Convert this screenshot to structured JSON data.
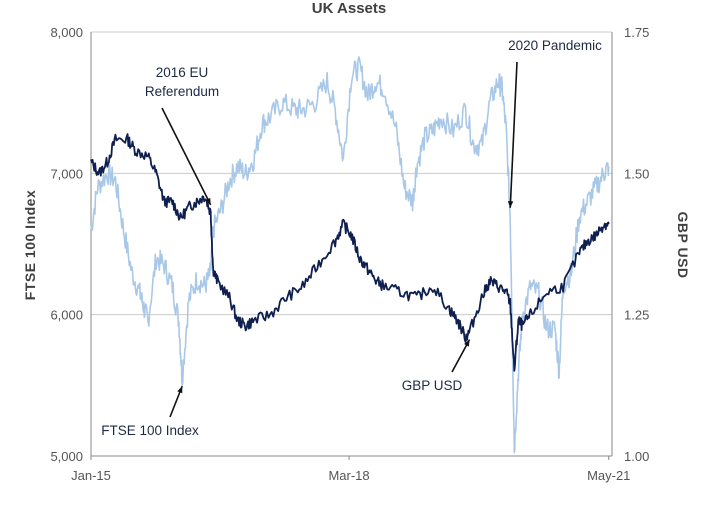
{
  "chart_data": {
    "type": "line",
    "title": "UK Assets",
    "ylabel_left": "FTSE  100  Index",
    "ylabel_right": "GBP  USD",
    "ylim_left": [
      5000,
      8000
    ],
    "ylim_right": [
      1.0,
      1.75
    ],
    "yticks_left": [
      "5,000",
      "6,000",
      "7,000",
      "8,000"
    ],
    "yticks_right": [
      "1.00",
      "1.25",
      "1.50",
      "1.75"
    ],
    "xticks": [
      {
        "label": "Jan-15",
        "t": 2015.0
      },
      {
        "label": "Mar-18",
        "t": 2018.17
      },
      {
        "label": "May-21",
        "t": 2021.36
      }
    ],
    "xlim": [
      2015.0,
      2021.4
    ],
    "grid": "horizontal",
    "colors": {
      "ftse": "#a9c8e8",
      "gbp": "#0f1f4f",
      "grid": "#cccccc",
      "axis": "#888888",
      "text": "#404040"
    },
    "series": [
      {
        "name": "FTSE 100 Index",
        "axis": "left",
        "color": "#a9c8e8",
        "x": [
          2015.0,
          2015.08,
          2015.2,
          2015.3,
          2015.4,
          2015.5,
          2015.6,
          2015.65,
          2015.7,
          2015.8,
          2015.9,
          2016.0,
          2016.08,
          2016.12,
          2016.2,
          2016.3,
          2016.4,
          2016.47,
          2016.5,
          2016.6,
          2016.7,
          2016.8,
          2016.9,
          2017.0,
          2017.1,
          2017.2,
          2017.35,
          2017.5,
          2017.6,
          2017.75,
          2017.9,
          2018.0,
          2018.1,
          2018.2,
          2018.3,
          2018.4,
          2018.5,
          2018.6,
          2018.75,
          2018.85,
          2018.95,
          2019.0,
          2019.1,
          2019.2,
          2019.3,
          2019.45,
          2019.6,
          2019.7,
          2019.8,
          2019.9,
          2020.0,
          2020.05,
          2020.1,
          2020.15,
          2020.2,
          2020.25,
          2020.3,
          2020.4,
          2020.5,
          2020.6,
          2020.7,
          2020.75,
          2020.8,
          2020.9,
          2021.0,
          2021.1,
          2021.2,
          2021.3,
          2021.36
        ],
        "y": [
          6600,
          6900,
          7000,
          6950,
          6600,
          6300,
          6150,
          6050,
          5950,
          6400,
          6350,
          6200,
          5950,
          5550,
          6100,
          6250,
          6200,
          6300,
          6600,
          6750,
          6950,
          7050,
          7000,
          7100,
          7350,
          7400,
          7500,
          7450,
          7450,
          7500,
          7650,
          7450,
          7100,
          7700,
          7750,
          7550,
          7650,
          7600,
          7300,
          6900,
          6800,
          7050,
          7250,
          7300,
          7400,
          7300,
          7450,
          7200,
          7200,
          7500,
          7650,
          7600,
          7300,
          6700,
          5050,
          5600,
          6000,
          6200,
          6150,
          5900,
          5900,
          5600,
          6200,
          6300,
          6700,
          6800,
          6900,
          7000,
          7050
        ]
      },
      {
        "name": "GBP USD",
        "axis": "right",
        "color": "#0f1f4f",
        "x": [
          2015.0,
          2015.1,
          2015.2,
          2015.3,
          2015.45,
          2015.55,
          2015.7,
          2015.8,
          2015.9,
          2016.0,
          2016.1,
          2016.2,
          2016.3,
          2016.4,
          2016.47,
          2016.5,
          2016.55,
          2016.7,
          2016.8,
          2016.9,
          2017.0,
          2017.2,
          2017.4,
          2017.6,
          2017.8,
          2018.0,
          2018.1,
          2018.2,
          2018.3,
          2018.4,
          2018.5,
          2018.6,
          2018.8,
          2019.0,
          2019.2,
          2019.4,
          2019.5,
          2019.6,
          2019.65,
          2019.8,
          2019.9,
          2020.0,
          2020.1,
          2020.15,
          2020.2,
          2020.25,
          2020.3,
          2020.4,
          2020.6,
          2020.8,
          2021.0,
          2021.1,
          2021.2,
          2021.3,
          2021.36
        ],
        "y": [
          1.52,
          1.5,
          1.52,
          1.56,
          1.56,
          1.54,
          1.53,
          1.5,
          1.45,
          1.45,
          1.42,
          1.44,
          1.45,
          1.46,
          1.43,
          1.33,
          1.31,
          1.28,
          1.24,
          1.23,
          1.24,
          1.25,
          1.28,
          1.3,
          1.34,
          1.38,
          1.41,
          1.39,
          1.35,
          1.33,
          1.31,
          1.3,
          1.29,
          1.28,
          1.3,
          1.26,
          1.24,
          1.21,
          1.22,
          1.28,
          1.31,
          1.3,
          1.29,
          1.27,
          1.15,
          1.24,
          1.23,
          1.25,
          1.29,
          1.3,
          1.36,
          1.38,
          1.39,
          1.41,
          1.41
        ]
      }
    ],
    "annotations": [
      {
        "label_lines": [
          "2016 EU",
          "Referendum"
        ],
        "target": {
          "t": 2016.47,
          "series": "GBP USD"
        }
      },
      {
        "label_lines": [
          "2020  Pandemic"
        ],
        "target": {
          "t": 2020.15,
          "series": "FTSE 100 Index"
        }
      },
      {
        "label_lines": [
          "FTSE 100 Index"
        ],
        "target": {
          "t": 2016.12,
          "series": "FTSE 100 Index"
        }
      },
      {
        "label_lines": [
          "GBP USD"
        ],
        "target": {
          "t": 2019.65,
          "series": "GBP USD"
        }
      }
    ]
  }
}
